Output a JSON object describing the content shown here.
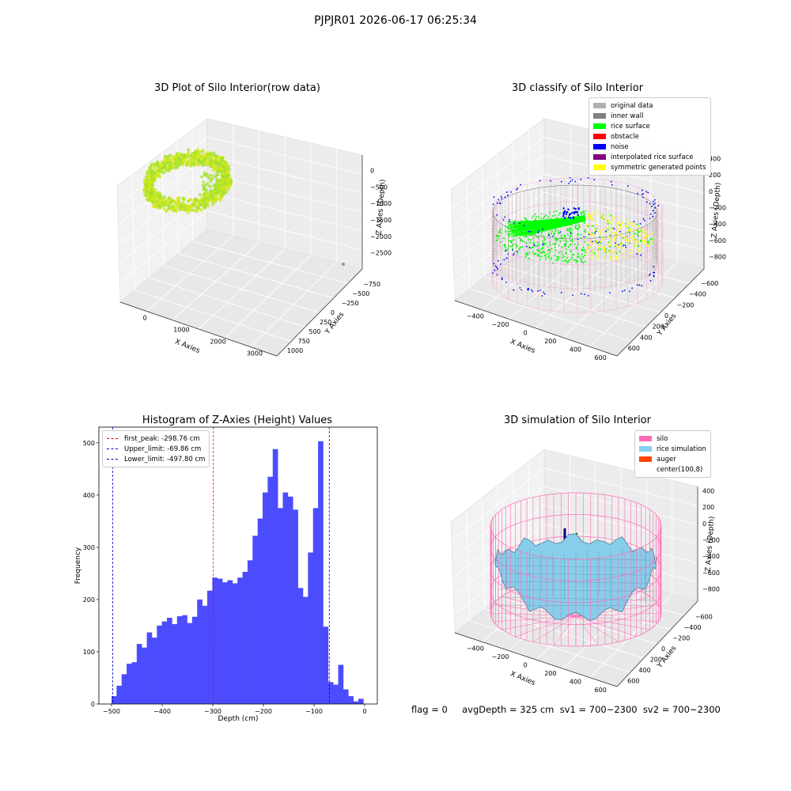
{
  "suptitle": "PJPJR01 2026-06-17 06:25:34",
  "status_text": "flag = 0     avgDepth = 325 cm  sv1 = 700~2300  sv2 = 700~2300",
  "chart_data": [
    {
      "type": "scatter",
      "title": "3D Plot of Silo Interior(row data)",
      "xlabel": "X Axies",
      "ylabel": "Y Axies",
      "zlabel": "Z Axies (Depth)",
      "x_ticks": [
        "0",
        "1000",
        "2000",
        "3000"
      ],
      "y_ticks": [
        "1000",
        "750",
        "500",
        "250",
        "0",
        "−250",
        "−500",
        "−750"
      ],
      "z_ticks": [
        "0",
        "−500",
        "−1000",
        "−1500",
        "−2000",
        "−2500"
      ],
      "colors": {
        "points": "#a6e22e",
        "points_alt": "#d4e81a"
      }
    },
    {
      "type": "scatter",
      "title": "3D classify of Silo Interior",
      "xlabel": "X Axies",
      "ylabel": "Y Axies",
      "zlabel": "Z Axies (Depth)",
      "x_ticks": [
        "−400",
        "−200",
        "0",
        "200",
        "400",
        "600"
      ],
      "y_ticks": [
        "600",
        "400",
        "200",
        "0",
        "−200",
        "−400",
        "−600"
      ],
      "z_ticks": [
        "400",
        "200",
        "0",
        "−200",
        "−400",
        "−600",
        "−800"
      ],
      "legend": [
        {
          "label": "original data",
          "color": "#b0b0b0"
        },
        {
          "label": "inner wall",
          "color": "#808080"
        },
        {
          "label": "rice surface",
          "color": "#00ff00"
        },
        {
          "label": "obstacle",
          "color": "#ff0000"
        },
        {
          "label": "noise",
          "color": "#0000ff"
        },
        {
          "label": "interpolated rice surface",
          "color": "#800080"
        },
        {
          "label": "symmetric generated points",
          "color": "#ffff00"
        }
      ]
    },
    {
      "type": "bar",
      "title": "Histogram of Z-Axies (Height) Values",
      "xlabel": "Depth (cm)",
      "ylabel": "Frequency",
      "xlim": [
        -525,
        25
      ],
      "ylim": [
        0,
        530
      ],
      "x_ticks": [
        -500,
        -400,
        -300,
        -200,
        -100,
        0
      ],
      "y_ticks": [
        0,
        100,
        200,
        300,
        400,
        500
      ],
      "bin_start": -500,
      "bin_width": 9.95,
      "values": [
        15,
        35,
        57,
        77,
        80,
        115,
        108,
        137,
        127,
        150,
        158,
        165,
        153,
        168,
        170,
        155,
        167,
        200,
        188,
        217,
        242,
        240,
        233,
        237,
        231,
        242,
        253,
        275,
        322,
        355,
        405,
        435,
        488,
        375,
        405,
        397,
        372,
        222,
        205,
        290,
        375,
        503,
        148,
        42,
        37,
        75,
        28,
        15,
        5,
        10
      ],
      "bar_color": "#4c4cff",
      "lines": [
        {
          "label": "first_peak: -298.76 cm",
          "x": -298.76,
          "color": "#ff0000"
        },
        {
          "label": "Upper_limit: -69.86 cm",
          "x": -69.86,
          "color": "#0000cc"
        },
        {
          "label": "Lower_limit: -497.80 cm",
          "x": -497.8,
          "color": "#0000cc"
        }
      ]
    },
    {
      "type": "area",
      "title": "3D simulation of Silo Interior",
      "xlabel": "X Axies",
      "ylabel": "Y Axies",
      "zlabel": "Z Axies (Depth)",
      "x_ticks": [
        "−400",
        "−200",
        "0",
        "200",
        "400",
        "600"
      ],
      "y_ticks": [
        "600",
        "400",
        "200",
        "0",
        "−200",
        "−400",
        "−600"
      ],
      "z_ticks": [
        "400",
        "200",
        "0",
        "−200",
        "−400",
        "−600",
        "−800"
      ],
      "legend": [
        {
          "label": "silo",
          "color": "#ff69b4"
        },
        {
          "label": "rice simulation",
          "color": "#87ceeb"
        },
        {
          "label": "auger",
          "color": "#ff4500"
        },
        {
          "label": "center(100,8)",
          "color": ""
        }
      ]
    }
  ]
}
